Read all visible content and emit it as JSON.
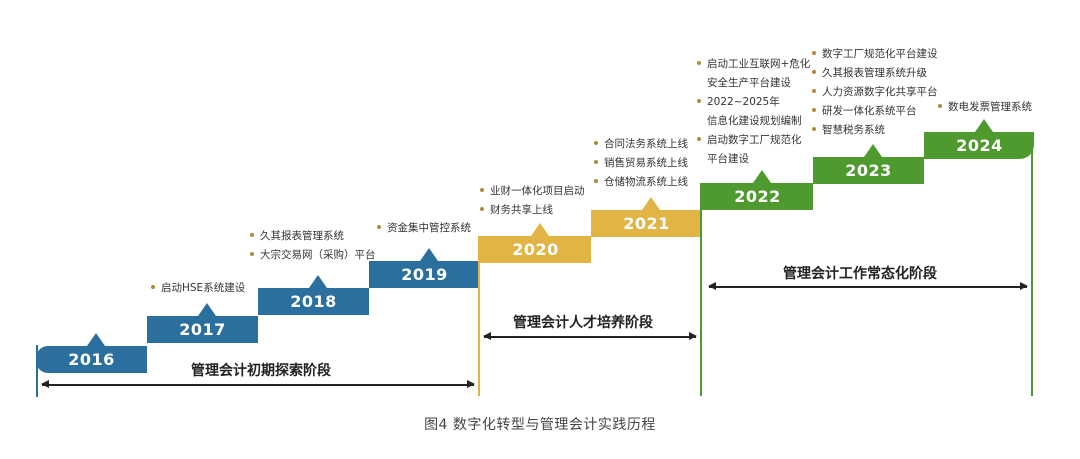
{
  "figure": {
    "caption": "图4  数字化转型与管理会计实践历程",
    "colors": {
      "blue": "#2a6f9e",
      "gold": "#e2b445",
      "green": "#4f9a2f"
    },
    "steps": [
      {
        "year": "2016",
        "color": "blue"
      },
      {
        "year": "2017",
        "color": "blue"
      },
      {
        "year": "2018",
        "color": "blue"
      },
      {
        "year": "2019",
        "color": "blue"
      },
      {
        "year": "2020",
        "color": "gold"
      },
      {
        "year": "2021",
        "color": "gold"
      },
      {
        "year": "2022",
        "color": "green"
      },
      {
        "year": "2023",
        "color": "green"
      },
      {
        "year": "2024",
        "color": "green"
      }
    ],
    "notes": [
      {
        "items": [
          [
            "启动HSE系统建设"
          ]
        ]
      },
      {
        "items": [
          [
            "久其报表管理系统"
          ],
          [
            "大宗交易网（采购）平台"
          ]
        ]
      },
      {
        "items": [
          [
            "资金集中管控系统"
          ]
        ]
      },
      {
        "items": [
          [
            "业财一体化项目启动"
          ],
          [
            "财务共享上线"
          ]
        ]
      },
      {
        "items": [
          [
            "合同法务系统上线"
          ],
          [
            "销售贸易系统上线"
          ],
          [
            "仓储物流系统上线"
          ]
        ]
      },
      {
        "items": [
          [
            "启动工业互联网+危化",
            "安全生产平台建设"
          ],
          [
            "2022~2025年",
            "信息化建设规划编制"
          ],
          [
            "启动数字工厂规范化",
            "平台建设"
          ]
        ]
      },
      {
        "items": [
          [
            "数字工厂规范化平台建设"
          ],
          [
            "久其报表管理系统升级"
          ],
          [
            "人力资源数字化共享平台"
          ],
          [
            "研发一体化系统平台"
          ],
          [
            "智慧税务系统"
          ]
        ]
      },
      {
        "items": [
          [
            "数电发票管理系统"
          ]
        ]
      }
    ],
    "phases": [
      {
        "label": "管理会计初期探索阶段"
      },
      {
        "label": "管理会计人才培养阶段"
      },
      {
        "label": "管理会计工作常态化阶段"
      }
    ]
  }
}
